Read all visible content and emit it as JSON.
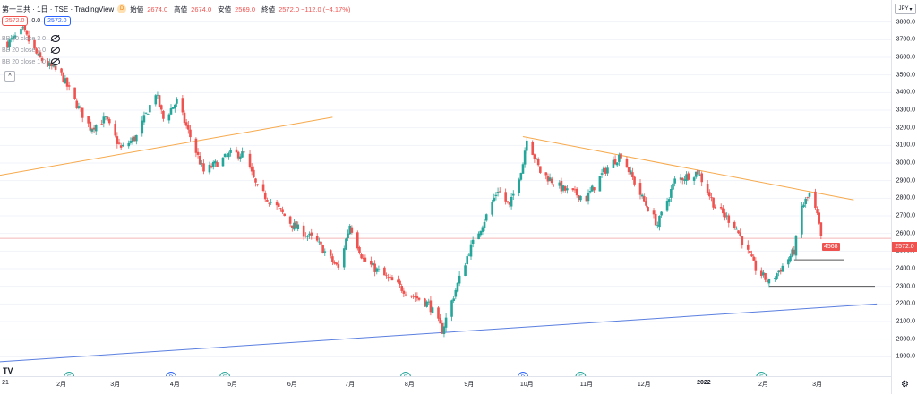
{
  "header": {
    "symbol": "第一三共 · 1日 · TSE · TradingView",
    "delay_badge": "D",
    "open_label": "始値",
    "open_value": "2674.0",
    "high_label": "高値",
    "high_value": "2674.0",
    "low_label": "安値",
    "low_value": "2569.0",
    "close_label": "終値",
    "close_value": "2572.0 −112.0 (−4.17%)"
  },
  "pills": {
    "price": "2572.0",
    "spread": "0.0",
    "price2": "2572.0"
  },
  "indicators": [
    "BB 20 close 3 0",
    "BB 20 close 2 0",
    "BB 20 close 1 0"
  ],
  "controls": {
    "collapse": "^",
    "currency": "JPY",
    "settings": "⚙"
  },
  "logo": "TV",
  "badges": {
    "volume": "4568",
    "last_price": "2572.0"
  },
  "colors": {
    "up": "#26a69a",
    "down": "#ef5350",
    "trend_orange": "#f7a94b",
    "trend_blue": "#5b7fe0",
    "hline": "#555555",
    "lastline": "#f4b6b6"
  },
  "time_axis": {
    "labels": [
      "21",
      "2月",
      "3月",
      "4月",
      "5月",
      "6月",
      "7月",
      "8月",
      "9月",
      "10月",
      "11月",
      "12月",
      "2022",
      "2月",
      "3月"
    ],
    "bold": [
      "2022"
    ]
  },
  "markers": [
    {
      "label": "E",
      "color": "#26a69a",
      "date": "2021-02-05"
    },
    {
      "label": "D",
      "color": "#2962ff",
      "date": "2021-03-30"
    },
    {
      "label": "E",
      "color": "#26a69a",
      "date": "2021-04-27"
    },
    {
      "label": "E",
      "color": "#26a69a",
      "date": "2021-07-30"
    },
    {
      "label": "D",
      "color": "#2962ff",
      "date": "2021-09-29"
    },
    {
      "label": "E",
      "color": "#26a69a",
      "date": "2021-10-29"
    },
    {
      "label": "E",
      "color": "#26a69a",
      "date": "2022-01-31"
    }
  ],
  "chart_data": {
    "type": "candlestick",
    "xlabel": "",
    "ylabel": "",
    "ylim": [
      1800,
      3900
    ],
    "xlim": [
      "2021-01-01",
      "2022-03-31"
    ],
    "y_ticks": [
      1900,
      2000,
      2100,
      2200,
      2300,
      2400,
      2500,
      2600,
      2700,
      2800,
      2900,
      3000,
      3100,
      3200,
      3300,
      3400,
      3500,
      3600,
      3700,
      3800
    ],
    "y_tick_labels": [
      "1900.0",
      "2000.0",
      "2100.0",
      "2200.0",
      "2300.0",
      "2400.0",
      "2500.0",
      "2600.0",
      "2700.0",
      "2800.0",
      "2900.0",
      "3000.0",
      "3100.0",
      "3200.0",
      "3300.0",
      "3400.0",
      "3500.0",
      "3600.0",
      "3700.0",
      "3800.0"
    ],
    "grid": true,
    "close_anchors": [
      [
        "2021-01-04",
        3680
      ],
      [
        "2021-01-12",
        3750
      ],
      [
        "2021-01-20",
        3600
      ],
      [
        "2021-02-01",
        3500
      ],
      [
        "2021-02-08",
        3350
      ],
      [
        "2021-02-16",
        3200
      ],
      [
        "2021-02-24",
        3250
      ],
      [
        "2021-03-04",
        3080
      ],
      [
        "2021-03-12",
        3150
      ],
      [
        "2021-03-22",
        3400
      ],
      [
        "2021-03-26",
        3250
      ],
      [
        "2021-04-02",
        3350
      ],
      [
        "2021-04-09",
        3150
      ],
      [
        "2021-04-16",
        2950
      ],
      [
        "2021-04-23",
        3000
      ],
      [
        "2021-04-30",
        3050
      ],
      [
        "2021-05-07",
        3050
      ],
      [
        "2021-05-14",
        2850
      ],
      [
        "2021-05-24",
        2750
      ],
      [
        "2021-06-01",
        2650
      ],
      [
        "2021-06-14",
        2550
      ],
      [
        "2021-06-25",
        2400
      ],
      [
        "2021-07-01",
        2650
      ],
      [
        "2021-07-08",
        2450
      ],
      [
        "2021-07-20",
        2350
      ],
      [
        "2021-08-02",
        2250
      ],
      [
        "2021-08-11",
        2200
      ],
      [
        "2021-08-18",
        2050
      ],
      [
        "2021-08-25",
        2280
      ],
      [
        "2021-09-01",
        2500
      ],
      [
        "2021-09-10",
        2700
      ],
      [
        "2021-09-16",
        2850
      ],
      [
        "2021-09-22",
        2750
      ],
      [
        "2021-09-29",
        3000
      ],
      [
        "2021-10-01",
        3150
      ],
      [
        "2021-10-08",
        2950
      ],
      [
        "2021-10-20",
        2850
      ],
      [
        "2021-11-01",
        2800
      ],
      [
        "2021-11-10",
        2950
      ],
      [
        "2021-11-19",
        3050
      ],
      [
        "2021-11-30",
        2800
      ],
      [
        "2021-12-08",
        2650
      ],
      [
        "2021-12-17",
        2900
      ],
      [
        "2021-12-29",
        2950
      ],
      [
        "2022-01-07",
        2750
      ],
      [
        "2022-01-17",
        2650
      ],
      [
        "2022-01-28",
        2400
      ],
      [
        "2022-02-04",
        2320
      ],
      [
        "2022-02-10",
        2400
      ],
      [
        "2022-02-17",
        2500
      ],
      [
        "2022-02-21",
        2750
      ],
      [
        "2022-02-25",
        2820
      ],
      [
        "2022-03-01",
        2700
      ],
      [
        "2022-03-03",
        2572
      ]
    ],
    "drawings": [
      {
        "type": "trendline",
        "color": "orange",
        "from": [
          "2020-12-15",
          2900
        ],
        "to": [
          "2021-06-22",
          3260
        ]
      },
      {
        "type": "trendline",
        "color": "orange",
        "from": [
          "2021-09-29",
          3150
        ],
        "to": [
          "2022-03-20",
          2790
        ]
      },
      {
        "type": "trendline",
        "color": "blue",
        "from": [
          "2020-12-01",
          1850
        ],
        "to": [
          "2022-04-01",
          2200
        ]
      },
      {
        "type": "hline",
        "price": 2450,
        "from": "2022-02-17",
        "to": "2022-03-15"
      },
      {
        "type": "hline",
        "price": 2300,
        "from": "2022-02-04",
        "to": "2022-03-31"
      }
    ],
    "last_price": 2572.0,
    "volume_label": 4568
  }
}
